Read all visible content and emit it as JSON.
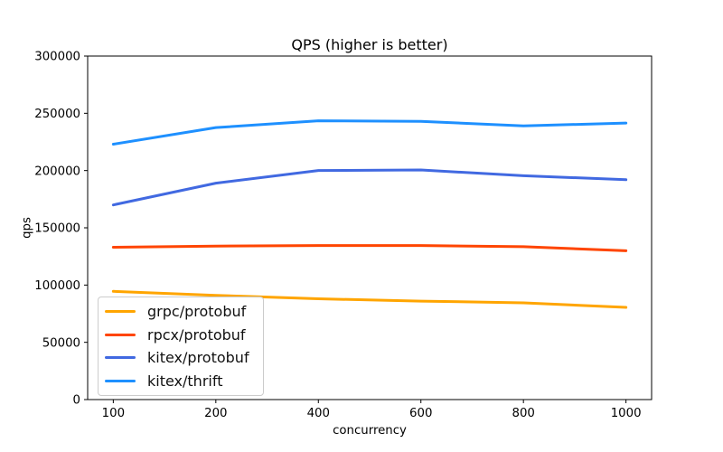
{
  "chart_data": {
    "type": "line",
    "title": "QPS (higher is better)",
    "xlabel": "concurrency",
    "ylabel": "qps",
    "categories": [
      "100",
      "200",
      "400",
      "600",
      "800",
      "1000"
    ],
    "y_ticks": [
      0,
      50000,
      100000,
      150000,
      200000,
      250000,
      300000
    ],
    "y_tick_labels": [
      "0",
      "50000",
      "100000",
      "150000",
      "200000",
      "250000",
      "300000"
    ],
    "ylim": [
      0,
      300000
    ],
    "grid": false,
    "legend_position": "lower-left",
    "axis_color": "#000000",
    "series": [
      {
        "name": "grpc/protobuf",
        "color": "#FFA500",
        "values": [
          94500,
          91000,
          88000,
          86000,
          84500,
          80500
        ]
      },
      {
        "name": "rpcx/protobuf",
        "color": "#FF4500",
        "values": [
          133000,
          134000,
          134500,
          134500,
          133500,
          130000
        ]
      },
      {
        "name": "kitex/protobuf",
        "color": "#4169E1",
        "values": [
          170000,
          189000,
          200000,
          200500,
          195500,
          192000
        ]
      },
      {
        "name": "kitex/thrift",
        "color": "#1E90FF",
        "values": [
          223000,
          237500,
          243500,
          243000,
          239000,
          241500
        ]
      }
    ]
  }
}
